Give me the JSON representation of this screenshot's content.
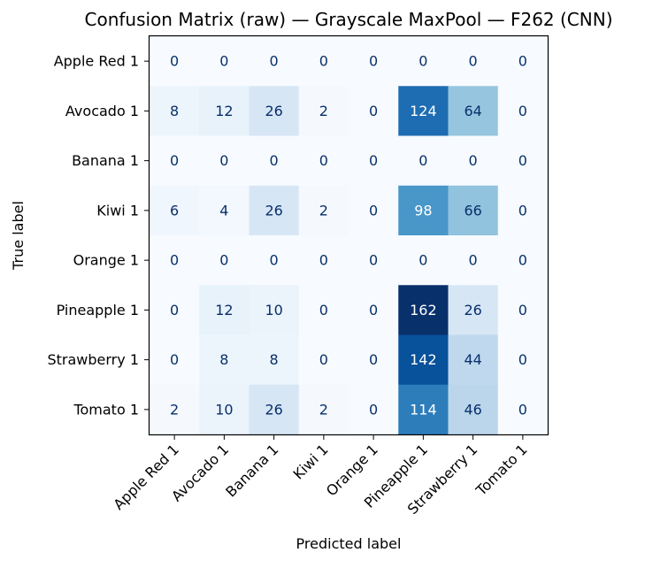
{
  "chart_data": {
    "type": "heatmap",
    "title": "Confusion Matrix (raw) — Grayscale MaxPool — F262 (CNN)",
    "xlabel": "Predicted label",
    "ylabel": "True label",
    "x_labels": [
      "Apple Red 1",
      "Avocado 1",
      "Banana 1",
      "Kiwi 1",
      "Orange 1",
      "Pineapple 1",
      "Strawberry 1",
      "Tomato 1"
    ],
    "y_labels": [
      "Apple Red 1",
      "Avocado 1",
      "Banana 1",
      "Kiwi 1",
      "Orange 1",
      "Pineapple 1",
      "Strawberry 1",
      "Tomato 1"
    ],
    "values": [
      [
        0,
        0,
        0,
        0,
        0,
        0,
        0,
        0
      ],
      [
        8,
        12,
        26,
        2,
        0,
        124,
        64,
        0
      ],
      [
        0,
        0,
        0,
        0,
        0,
        0,
        0,
        0
      ],
      [
        6,
        4,
        26,
        2,
        0,
        98,
        66,
        0
      ],
      [
        0,
        0,
        0,
        0,
        0,
        0,
        0,
        0
      ],
      [
        0,
        12,
        10,
        0,
        0,
        162,
        26,
        0
      ],
      [
        0,
        8,
        8,
        0,
        0,
        142,
        44,
        0
      ],
      [
        2,
        10,
        26,
        2,
        0,
        114,
        46,
        0
      ]
    ],
    "value_range": [
      0,
      162
    ],
    "colormap": "Blues",
    "colorbar": false,
    "grid": false
  }
}
